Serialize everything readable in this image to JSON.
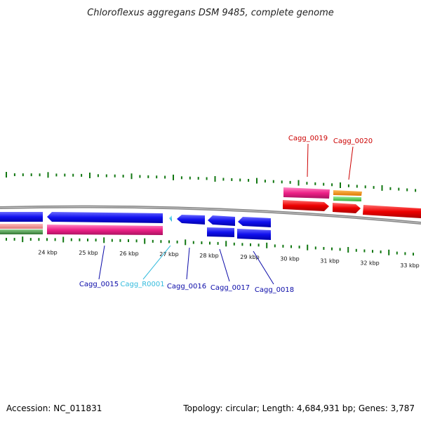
{
  "title": "Chloroflexus aggregans DSM 9485, complete genome",
  "accession": "Accession: NC_011831",
  "summary": "Topology: circular; Length: 4,684,931 bp; Genes: 3,787",
  "scale_labels": [
    "24 kbp",
    "25 kbp",
    "26 kbp",
    "27 kbp",
    "28 kbp",
    "29 kbp",
    "30 kbp",
    "31 kbp",
    "32 kbp",
    "33 kbp"
  ],
  "genes": [
    {
      "name": "Cagg_0015",
      "color": "#0a0aa8"
    },
    {
      "name": "Cagg_R0001",
      "color": "#33bbdd"
    },
    {
      "name": "Cagg_0016",
      "color": "#0a0aa8"
    },
    {
      "name": "Cagg_0017",
      "color": "#0a0aa8"
    },
    {
      "name": "Cagg_0018",
      "color": "#0a0aa8"
    },
    {
      "name": "Cagg_0019",
      "color": "#cc0000"
    },
    {
      "name": "Cagg_0020",
      "color": "#cc0000"
    }
  ],
  "colors": {
    "cds": "#1010ee",
    "trna": "#22ccee",
    "mrna": "#ee2288",
    "salmon": "#ee8888",
    "green_track": "#449944",
    "red_cds": "#ee0000",
    "orange": "#ee8800",
    "lime": "#44cc44",
    "backbone": "#888888",
    "tick": "#117711"
  }
}
